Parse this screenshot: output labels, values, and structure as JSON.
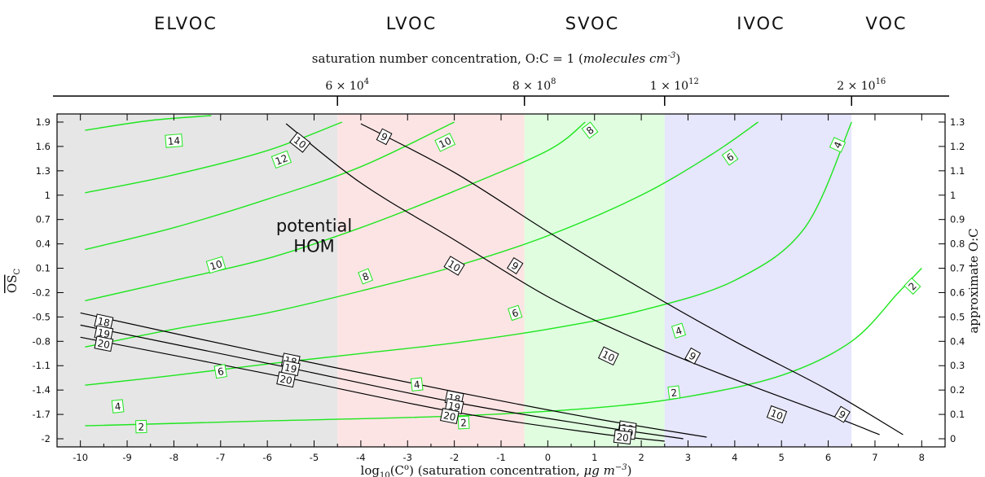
{
  "chart_data": {
    "type": "line",
    "volatility_bands": [
      {
        "label": "ELVOC",
        "from": -10.5,
        "to": -4.5,
        "color": "#e6e6e6"
      },
      {
        "label": "LVOC",
        "from": -4.5,
        "to": -0.5,
        "color": "#fde4e4"
      },
      {
        "label": "SVOC",
        "from": -0.5,
        "to": 2.5,
        "color": "#e0fde0"
      },
      {
        "label": "IVOC",
        "from": 2.5,
        "to": 6.5,
        "color": "#e6e6fd"
      },
      {
        "label": "VOC",
        "from": 6.5,
        "to": 8.5,
        "color": "#ffffff"
      }
    ],
    "xlabel_prefix": "log",
    "xlabel_sub": "10",
    "xlabel_mid": "(C",
    "xlabel_sup": "o",
    "xlabel_rest": ") (saturation concentration, ",
    "xlabel_unit": "μg m",
    "xlabel_unit_sup": "−3",
    "xlabel_end": ")",
    "ylabel": "OS",
    "ylabel_sub": "C",
    "y2label": "approximate O:C",
    "top_axis_title_main": "saturation number concentration, O:C = 1 (",
    "top_axis_title_unit": "molecules cm",
    "top_axis_title_sup": "-3",
    "top_axis_title_end": ")",
    "top_ticks": [
      {
        "x": -4.5,
        "mantissa": "6 × 10",
        "exp": "4"
      },
      {
        "x": -0.5,
        "mantissa": "8 × 10",
        "exp": "8"
      },
      {
        "x": 2.5,
        "mantissa": "1 × 10",
        "exp": "12"
      },
      {
        "x": 6.5,
        "mantissa": "2 × 10",
        "exp": "16"
      }
    ],
    "xlim": [
      -10.5,
      8.5
    ],
    "ylim": [
      -2.1,
      2.0
    ],
    "x_ticks": [
      -10,
      -9,
      -8,
      -7,
      -6,
      -5,
      -4,
      -3,
      -2,
      -1,
      0,
      1,
      2,
      3,
      4,
      5,
      6,
      7,
      8
    ],
    "y_ticks": [
      1.9,
      1.6,
      1.3,
      1,
      0.7,
      0.4,
      0.1,
      -0.2,
      -0.5,
      -0.8,
      -1.1,
      -1.4,
      -1.7,
      -2
    ],
    "y2_ticks": [
      {
        "y": 1.9,
        "label": "1.3"
      },
      {
        "y": 1.6,
        "label": "1.2"
      },
      {
        "y": 1.3,
        "label": "1.1"
      },
      {
        "y": 1.0,
        "label": "1"
      },
      {
        "y": 0.7,
        "label": "0.9"
      },
      {
        "y": 0.4,
        "label": "0.8"
      },
      {
        "y": 0.1,
        "label": "0.7"
      },
      {
        "y": -0.2,
        "label": "0.6"
      },
      {
        "y": -0.5,
        "label": "0.5"
      },
      {
        "y": -0.8,
        "label": "0.4"
      },
      {
        "y": -1.1,
        "label": "0.3"
      },
      {
        "y": -1.4,
        "label": "0.2"
      },
      {
        "y": -1.7,
        "label": "0.1"
      },
      {
        "y": -2.0,
        "label": "0"
      }
    ],
    "annotation": {
      "line1": "potential",
      "line2": "HOM",
      "x": -5.0,
      "y": 0.55
    },
    "green_contours": [
      {
        "label": "14",
        "points": [
          [
            -9.9,
            1.8
          ],
          [
            -8.5,
            1.92
          ],
          [
            -7.2,
            1.98
          ]
        ],
        "labels_at": [
          [
            -8.0,
            1.67
          ]
        ]
      },
      {
        "label": "12",
        "points": [
          [
            -9.9,
            1.03
          ],
          [
            -8,
            1.25
          ],
          [
            -6,
            1.55
          ],
          [
            -4.4,
            1.9
          ]
        ],
        "labels_at": [
          [
            -5.7,
            1.44
          ]
        ]
      },
      {
        "label": "10",
        "points": [
          [
            -9.9,
            0.33
          ],
          [
            -8,
            0.6
          ],
          [
            -6,
            0.95
          ],
          [
            -4,
            1.35
          ],
          [
            -2,
            1.9
          ]
        ],
        "labels_at": [
          [
            -7.1,
            0.14
          ],
          [
            -2.2,
            1.65
          ]
        ]
      },
      {
        "label": "8",
        "points": [
          [
            -9.9,
            -0.3
          ],
          [
            -8,
            -0.05
          ],
          [
            -6,
            0.22
          ],
          [
            -4,
            0.6
          ],
          [
            -2,
            1.05
          ],
          [
            0,
            1.55
          ],
          [
            0.8,
            1.9
          ]
        ],
        "labels_at": [
          [
            -3.9,
            0.0
          ],
          [
            0.9,
            1.8
          ]
        ]
      },
      {
        "label": "6",
        "points": [
          [
            -9.9,
            -0.87
          ],
          [
            -8,
            -0.65
          ],
          [
            -6,
            -0.45
          ],
          [
            -4,
            -0.18
          ],
          [
            -2,
            0.12
          ],
          [
            0,
            0.5
          ],
          [
            2,
            1.0
          ],
          [
            3.5,
            1.5
          ],
          [
            4.5,
            1.9
          ]
        ],
        "labels_at": [
          [
            -0.7,
            -0.45
          ],
          [
            3.9,
            1.47
          ]
        ]
      },
      {
        "label": "6",
        "points": [],
        "labels_at": [
          [
            -7.0,
            -1.17
          ]
        ]
      },
      {
        "label": "4",
        "points": [
          [
            -9.9,
            -1.34
          ],
          [
            -8,
            -1.22
          ],
          [
            -6,
            -1.08
          ],
          [
            -4,
            -0.95
          ],
          [
            -2,
            -0.82
          ],
          [
            0,
            -0.65
          ],
          [
            2,
            -0.42
          ],
          [
            4,
            -0.05
          ],
          [
            5.5,
            0.6
          ],
          [
            6.5,
            1.9
          ]
        ],
        "labels_at": [
          [
            -9.2,
            -1.6
          ],
          [
            -2.8,
            -1.33
          ],
          [
            2.8,
            -0.67
          ],
          [
            6.2,
            1.62
          ]
        ]
      },
      {
        "label": "2",
        "points": [
          [
            -9.9,
            -1.84
          ],
          [
            -6,
            -1.78
          ],
          [
            -2,
            -1.72
          ],
          [
            1,
            -1.62
          ],
          [
            3,
            -1.48
          ],
          [
            5,
            -1.22
          ],
          [
            6.5,
            -0.8
          ],
          [
            7.5,
            -0.2
          ],
          [
            8,
            0.1
          ]
        ],
        "labels_at": [
          [
            -8.7,
            -1.85
          ],
          [
            -1.8,
            -1.8
          ],
          [
            2.7,
            -1.43
          ],
          [
            7.8,
            -0.12
          ]
        ]
      }
    ],
    "black_contours": [
      {
        "label": "10",
        "points": [
          [
            -5.6,
            1.88
          ],
          [
            -4,
            1.15
          ],
          [
            -2,
            0.45
          ],
          [
            0,
            -0.25
          ],
          [
            2,
            -0.8
          ],
          [
            4,
            -1.27
          ],
          [
            6,
            -1.7
          ],
          [
            7.1,
            -1.95
          ]
        ],
        "labels_at": [
          [
            -5.3,
            1.65
          ],
          [
            -2.0,
            0.13
          ],
          [
            1.3,
            -0.98
          ],
          [
            4.9,
            -1.7
          ]
        ]
      },
      {
        "label": "9",
        "points": [
          [
            -4.0,
            1.88
          ],
          [
            -2,
            1.28
          ],
          [
            0,
            0.55
          ],
          [
            2,
            -0.15
          ],
          [
            4,
            -0.8
          ],
          [
            6,
            -1.4
          ],
          [
            7.6,
            -1.95
          ]
        ],
        "labels_at": [
          [
            -3.5,
            1.72
          ],
          [
            -0.7,
            0.13
          ],
          [
            3.1,
            -0.98
          ],
          [
            6.3,
            -1.7
          ]
        ]
      },
      {
        "label": "18",
        "points": [
          [
            -10.0,
            -0.45
          ],
          [
            -6,
            -0.95
          ],
          [
            -2,
            -1.42
          ],
          [
            1,
            -1.75
          ],
          [
            3.4,
            -1.98
          ]
        ],
        "labels_at": [
          [
            -9.5,
            -0.56
          ],
          [
            -5.5,
            -1.04
          ],
          [
            -2.0,
            -1.5
          ],
          [
            1.7,
            -1.87
          ]
        ]
      },
      {
        "label": "19",
        "points": [
          [
            -10.0,
            -0.6
          ],
          [
            -6,
            -1.07
          ],
          [
            -2,
            -1.55
          ],
          [
            1,
            -1.84
          ],
          [
            2.9,
            -2.0
          ]
        ],
        "labels_at": [
          [
            -9.5,
            -0.7
          ],
          [
            -5.5,
            -1.13
          ],
          [
            -2.0,
            -1.6
          ],
          [
            1.7,
            -1.92
          ]
        ]
      },
      {
        "label": "20",
        "points": [
          [
            -10.0,
            -0.75
          ],
          [
            -6,
            -1.2
          ],
          [
            -2,
            -1.67
          ],
          [
            1,
            -1.93
          ],
          [
            2.5,
            -2.03
          ]
        ],
        "labels_at": [
          [
            -9.5,
            -0.83
          ],
          [
            -5.6,
            -1.27
          ],
          [
            -2.1,
            -1.72
          ],
          [
            1.6,
            -1.98
          ]
        ]
      }
    ]
  }
}
